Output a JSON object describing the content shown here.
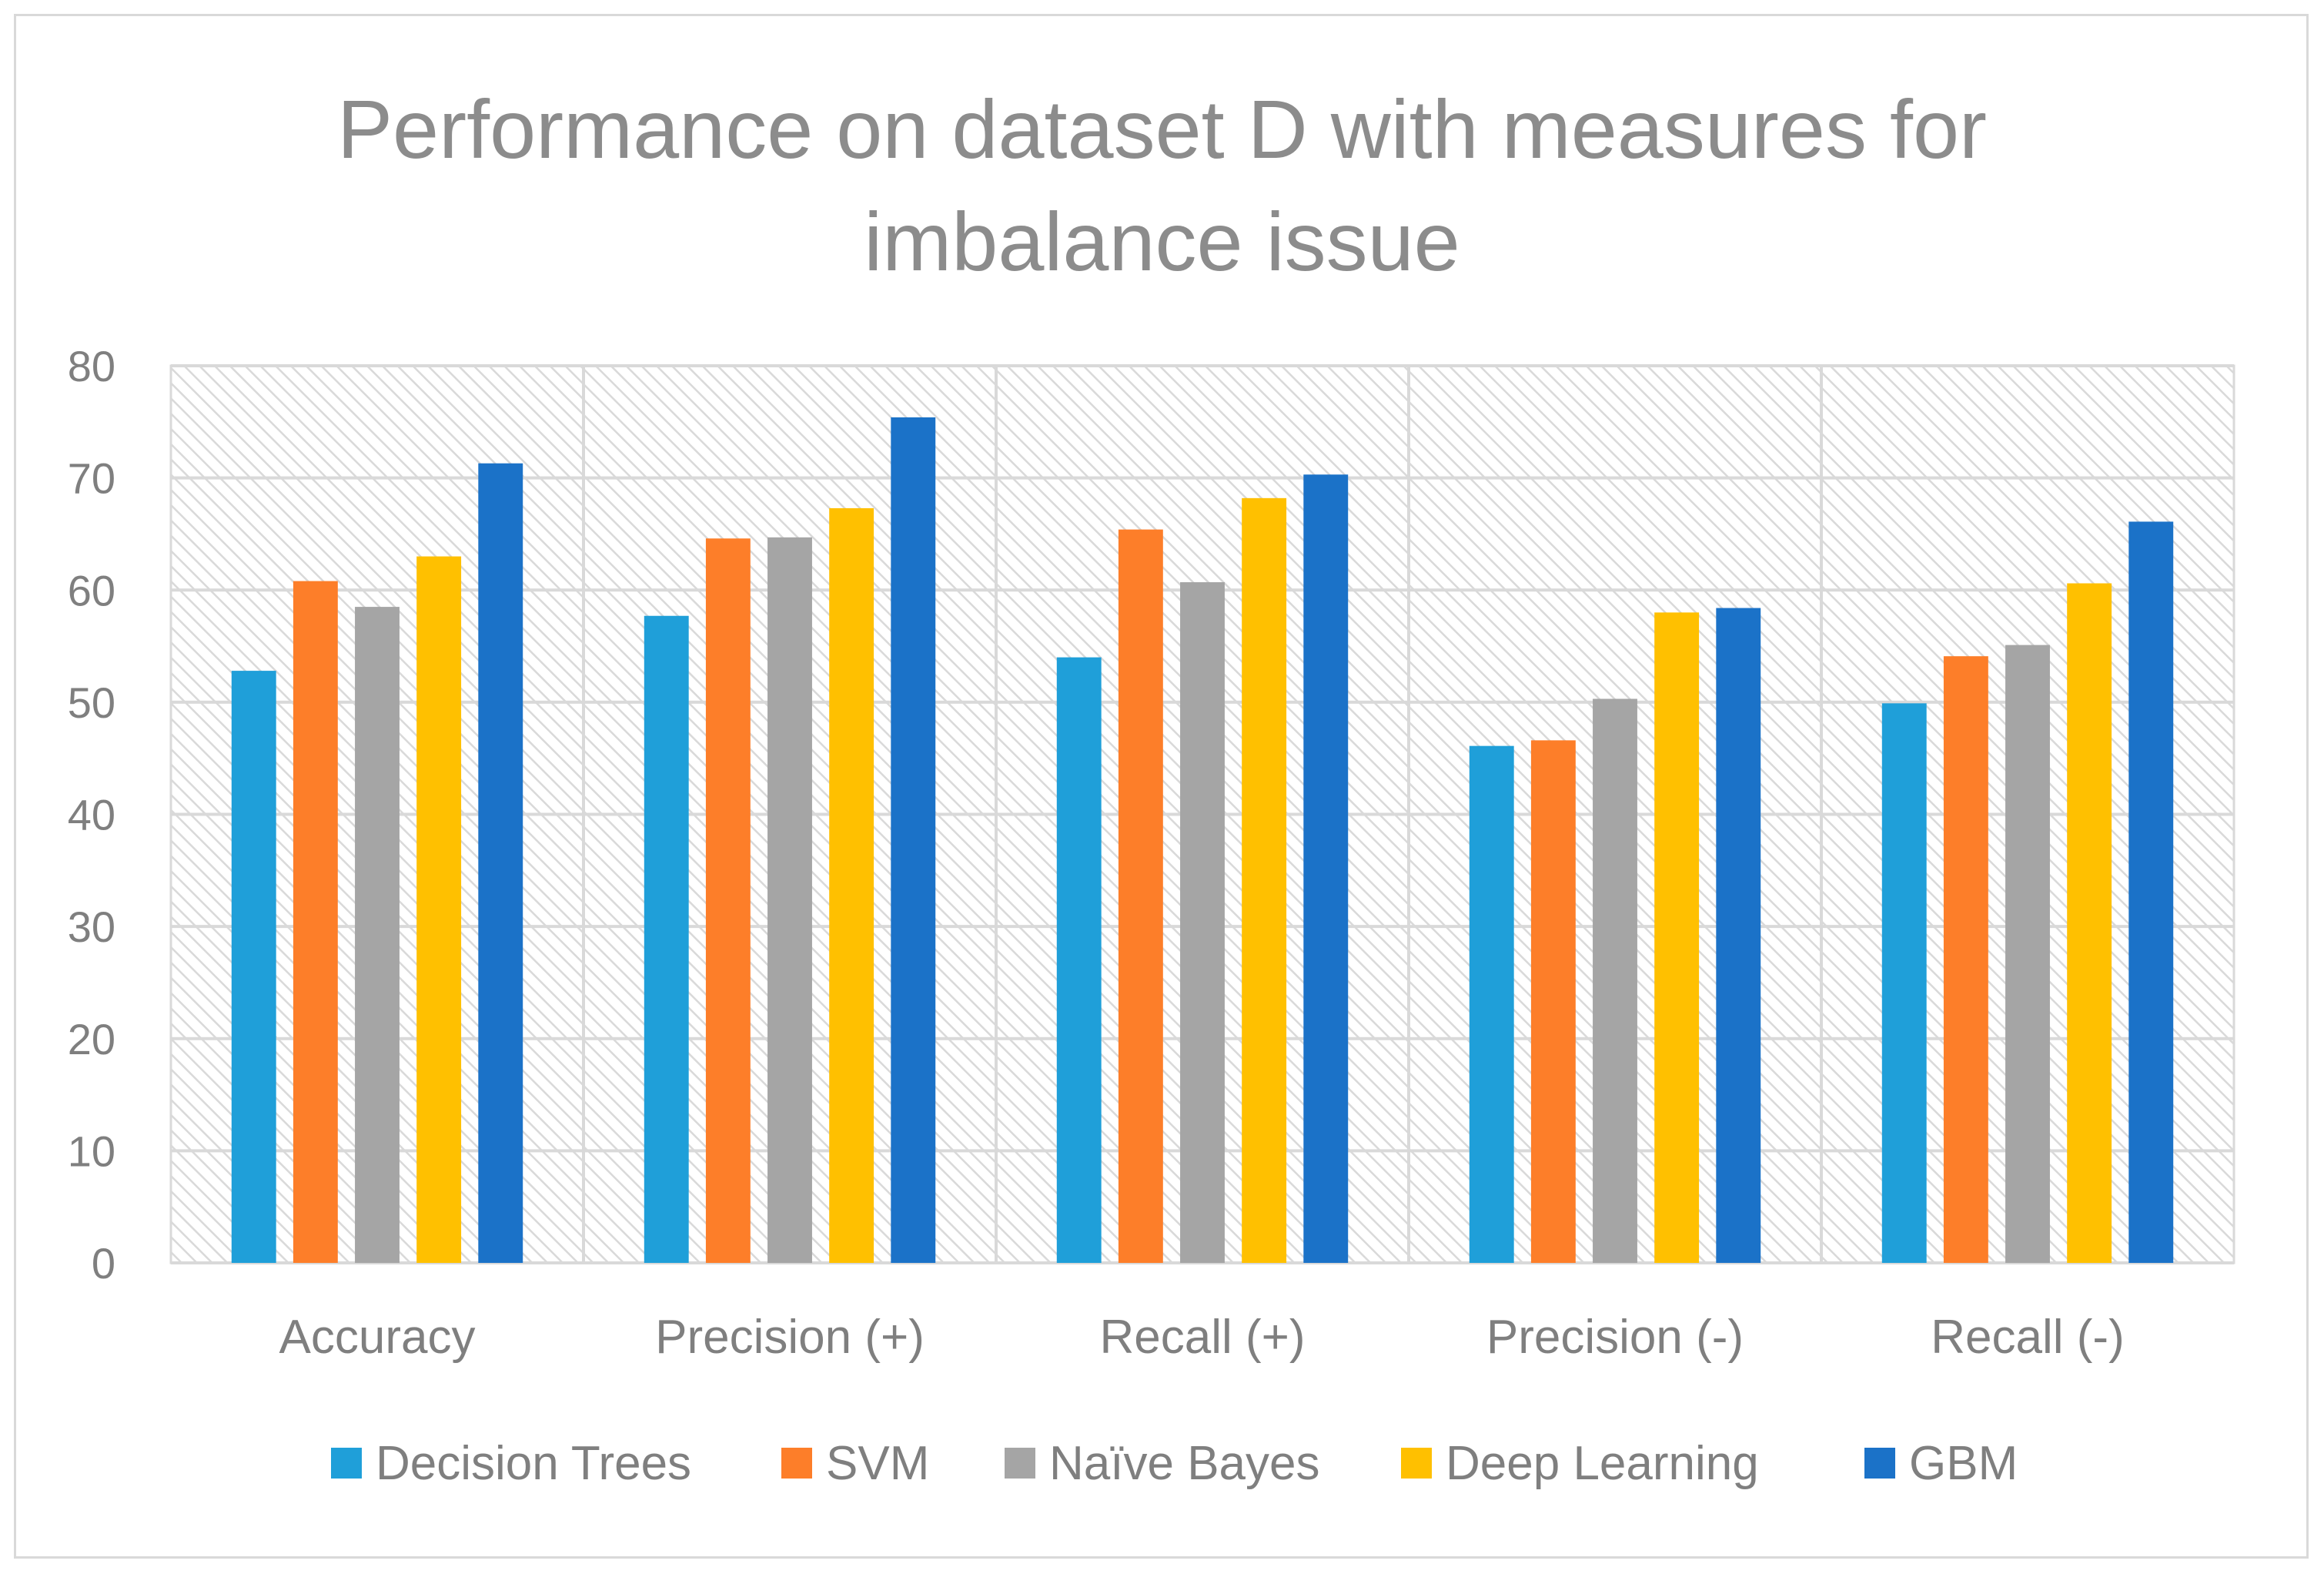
{
  "chart_data": {
    "type": "bar",
    "title": "Performance on dataset D with measures for\nimbalance issue",
    "categories": [
      "Accuracy",
      "Precision (+)",
      "Recall (+)",
      "Precision (-)",
      "Recall (-)"
    ],
    "ylim": [
      0,
      80
    ],
    "yticks": [
      0,
      10,
      20,
      30,
      40,
      50,
      60,
      70,
      80
    ],
    "grid": true,
    "legend_position": "bottom",
    "series": [
      {
        "name": "Decision Trees",
        "color": "#1f9fd9",
        "values": [
          52.8,
          57.7,
          54.0,
          46.1,
          49.9
        ]
      },
      {
        "name": "SVM",
        "color": "#fd7e29",
        "values": [
          60.8,
          64.6,
          65.4,
          46.6,
          54.1
        ]
      },
      {
        "name": "Naïve Bayes",
        "color": "#a5a5a5",
        "values": [
          58.5,
          64.7,
          60.7,
          50.3,
          55.1
        ]
      },
      {
        "name": "Deep Learning",
        "color": "#ffc000",
        "values": [
          63.0,
          67.3,
          68.2,
          58.0,
          60.6
        ]
      },
      {
        "name": "GBM",
        "color": "#1b72c8",
        "values": [
          71.3,
          75.4,
          70.3,
          58.4,
          66.1
        ]
      }
    ]
  }
}
